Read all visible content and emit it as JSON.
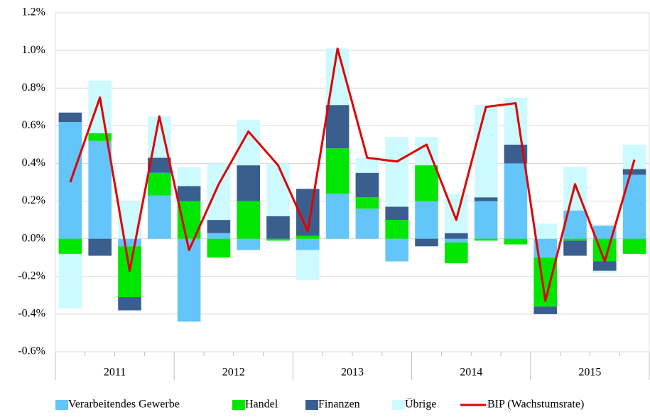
{
  "chart_data": {
    "type": "bar",
    "stacked": true,
    "categories": [
      null,
      null,
      null,
      null,
      null,
      null,
      null,
      null,
      null,
      null,
      null,
      null,
      null,
      null,
      null,
      null,
      null,
      null,
      null,
      null
    ],
    "groups": [
      "2011",
      "2012",
      "2013",
      "2014",
      "2015"
    ],
    "ylim": [
      -0.6,
      1.2
    ],
    "yticks": [
      {
        "value": -0.6,
        "label": "-0.6%"
      },
      {
        "value": -0.4,
        "label": "-0.4%"
      },
      {
        "value": -0.2,
        "label": "-0.2%"
      },
      {
        "value": 0,
        "label": "0.0%"
      },
      {
        "value": 0.2,
        "label": "0.2%"
      },
      {
        "value": 0.4,
        "label": "0.4%"
      },
      {
        "value": 0.6,
        "label": "0.6%"
      },
      {
        "value": 0.8,
        "label": "0.8%"
      },
      {
        "value": 1.0,
        "label": "1.0%"
      },
      {
        "value": 1.2,
        "label": "1.2%"
      }
    ],
    "grid": true,
    "legend": "bottom",
    "series": [
      {
        "name": "Verarbeitendes Gewerbe",
        "color": "#63c5f9",
        "values": [
          0.62,
          0.52,
          -0.04,
          0.23,
          -0.44,
          0.03,
          -0.06,
          0,
          -0.06,
          0.24,
          0.16,
          -0.12,
          0.2,
          -0.02,
          0.2,
          0.4,
          -0.1,
          0.15,
          0.07,
          0.34
        ]
      },
      {
        "name": "Handel",
        "color": "#00e600",
        "values": [
          -0.08,
          0.04,
          -0.27,
          0.12,
          0.2,
          -0.1,
          0.2,
          -0.01,
          0.015,
          0.24,
          0.06,
          0.1,
          0.19,
          -0.11,
          -0.01,
          -0.03,
          -0.26,
          -0.01,
          -0.12,
          -0.08
        ]
      },
      {
        "name": "Finanzen",
        "color": "#3a5f8f",
        "values": [
          0.05,
          -0.09,
          -0.07,
          0.08,
          0.08,
          0.07,
          0.19,
          0.12,
          0.25,
          0.23,
          0.13,
          0.07,
          -0.04,
          0.03,
          0.02,
          0.1,
          -0.04,
          -0.08,
          -0.05,
          0.03
        ]
      },
      {
        "name": "Übrige",
        "color": "#ccfaff",
        "values": [
          -0.29,
          0.28,
          0.2,
          0.22,
          0.1,
          0.3,
          0.24,
          0.28,
          -0.16,
          0.3,
          0.08,
          0.37,
          0.15,
          0.21,
          0.49,
          0.25,
          0.08,
          0.23,
          -0.01,
          0.13
        ]
      },
      {
        "name": "BIP (Wachstumsrate)",
        "color": "#e00000",
        "type": "line",
        "values": [
          0.3,
          0.75,
          -0.17,
          0.65,
          -0.06,
          0.29,
          0.57,
          0.39,
          0.04,
          1.01,
          0.43,
          0.41,
          0.5,
          0.1,
          0.7,
          0.72,
          -0.33,
          0.29,
          -0.12,
          0.42
        ]
      }
    ]
  }
}
